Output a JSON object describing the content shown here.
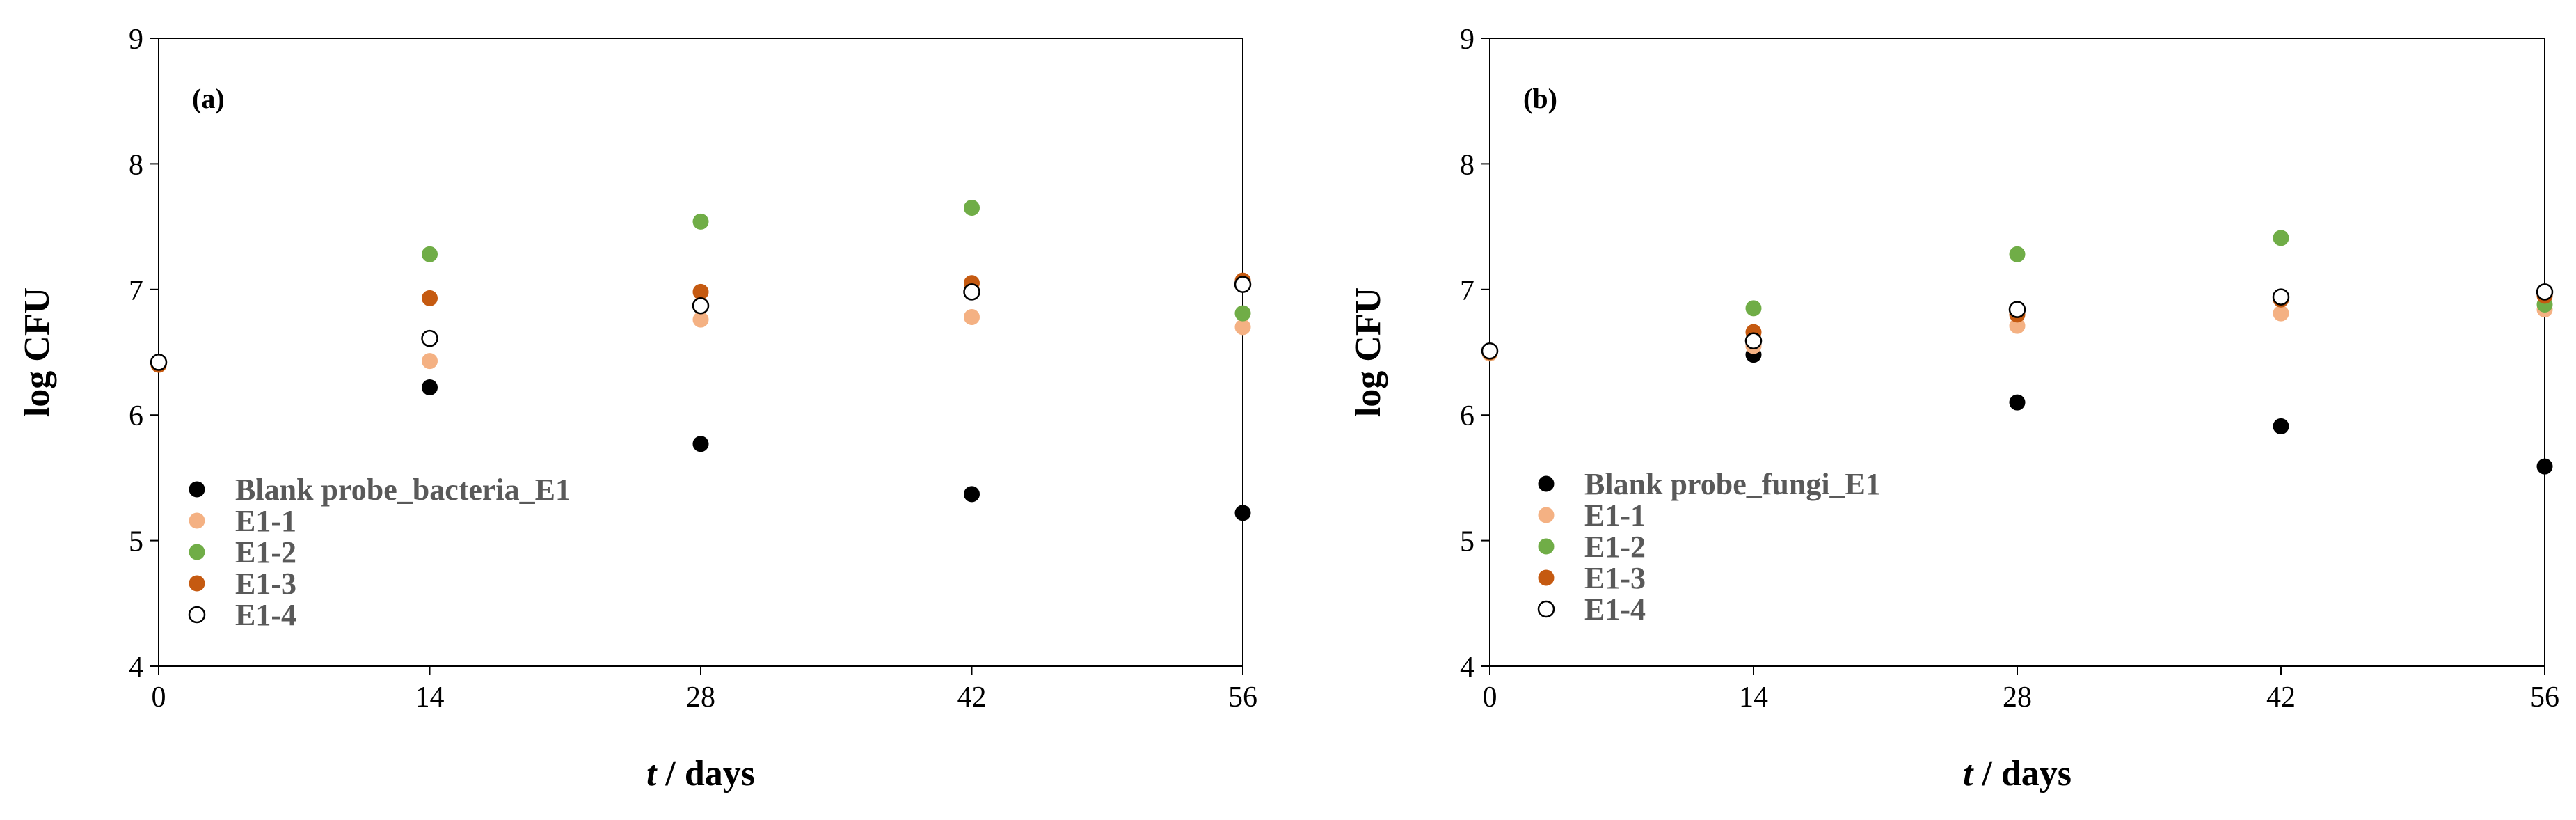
{
  "colors": {
    "blank": "#000000",
    "E1-1": "#F4B183",
    "E1-2": "#70AD47",
    "E1-3": "#C55A11",
    "E1-4": "#FFFFFF"
  },
  "chart_data": [
    {
      "type": "scatter",
      "panel_label": "(a)",
      "xlabel_italic": "t",
      "xlabel_rest": " / days",
      "ylabel": "log CFU",
      "xlim": [
        0,
        56
      ],
      "ylim": [
        4,
        9
      ],
      "xticks": [
        0,
        14,
        28,
        42,
        56
      ],
      "yticks": [
        4,
        5,
        6,
        7,
        8,
        9
      ],
      "grid": false,
      "legend_position": "lower-left",
      "series": [
        {
          "name": "Blank probe_bacteria_E1",
          "key": "blank",
          "points": [
            [
              0,
              6.42
            ],
            [
              14,
              6.22
            ],
            [
              28,
              5.77
            ],
            [
              42,
              5.37
            ],
            [
              56,
              5.22
            ]
          ]
        },
        {
          "name": "E1-1",
          "key": "E1-1",
          "points": [
            [
              0,
              6.4
            ],
            [
              14,
              6.43
            ],
            [
              28,
              6.76
            ],
            [
              42,
              6.78
            ],
            [
              56,
              6.7
            ]
          ]
        },
        {
          "name": "E1-2",
          "key": "E1-2",
          "points": [
            [
              0,
              6.41
            ],
            [
              14,
              7.28
            ],
            [
              28,
              7.54
            ],
            [
              42,
              7.65
            ],
            [
              56,
              6.81
            ]
          ]
        },
        {
          "name": "E1-3",
          "key": "E1-3",
          "points": [
            [
              0,
              6.4
            ],
            [
              14,
              6.93
            ],
            [
              28,
              6.98
            ],
            [
              42,
              7.05
            ],
            [
              56,
              7.07
            ]
          ]
        },
        {
          "name": "E1-4",
          "key": "E1-4",
          "points": [
            [
              0,
              6.42
            ],
            [
              14,
              6.61
            ],
            [
              28,
              6.87
            ],
            [
              42,
              6.98
            ],
            [
              56,
              7.04
            ]
          ]
        }
      ]
    },
    {
      "type": "scatter",
      "panel_label": "(b)",
      "xlabel_italic": "t",
      "xlabel_rest": " / days",
      "ylabel": "log CFU",
      "xlim": [
        0,
        56
      ],
      "ylim": [
        4,
        9
      ],
      "xticks": [
        0,
        14,
        28,
        42,
        56
      ],
      "yticks": [
        4,
        5,
        6,
        7,
        8,
        9
      ],
      "grid": false,
      "legend_position": "lower-left",
      "series": [
        {
          "name": "Blank probe_fungi_E1",
          "key": "blank",
          "points": [
            [
              0,
              6.5
            ],
            [
              14,
              6.48
            ],
            [
              28,
              6.1
            ],
            [
              42,
              5.91
            ],
            [
              56,
              5.59
            ]
          ]
        },
        {
          "name": "E1-1",
          "key": "E1-1",
          "points": [
            [
              0,
              6.49
            ],
            [
              14,
              6.55
            ],
            [
              28,
              6.71
            ],
            [
              42,
              6.81
            ],
            [
              56,
              6.84
            ]
          ]
        },
        {
          "name": "E1-2",
          "key": "E1-2",
          "points": [
            [
              0,
              6.5
            ],
            [
              14,
              6.85
            ],
            [
              28,
              7.28
            ],
            [
              42,
              7.41
            ],
            [
              56,
              6.88
            ]
          ]
        },
        {
          "name": "E1-3",
          "key": "E1-3",
          "points": [
            [
              0,
              6.5
            ],
            [
              14,
              6.66
            ],
            [
              28,
              6.8
            ],
            [
              42,
              6.92
            ],
            [
              56,
              6.95
            ]
          ]
        },
        {
          "name": "E1-4",
          "key": "E1-4",
          "points": [
            [
              0,
              6.51
            ],
            [
              14,
              6.59
            ],
            [
              28,
              6.84
            ],
            [
              42,
              6.94
            ],
            [
              56,
              6.98
            ]
          ]
        }
      ]
    }
  ]
}
